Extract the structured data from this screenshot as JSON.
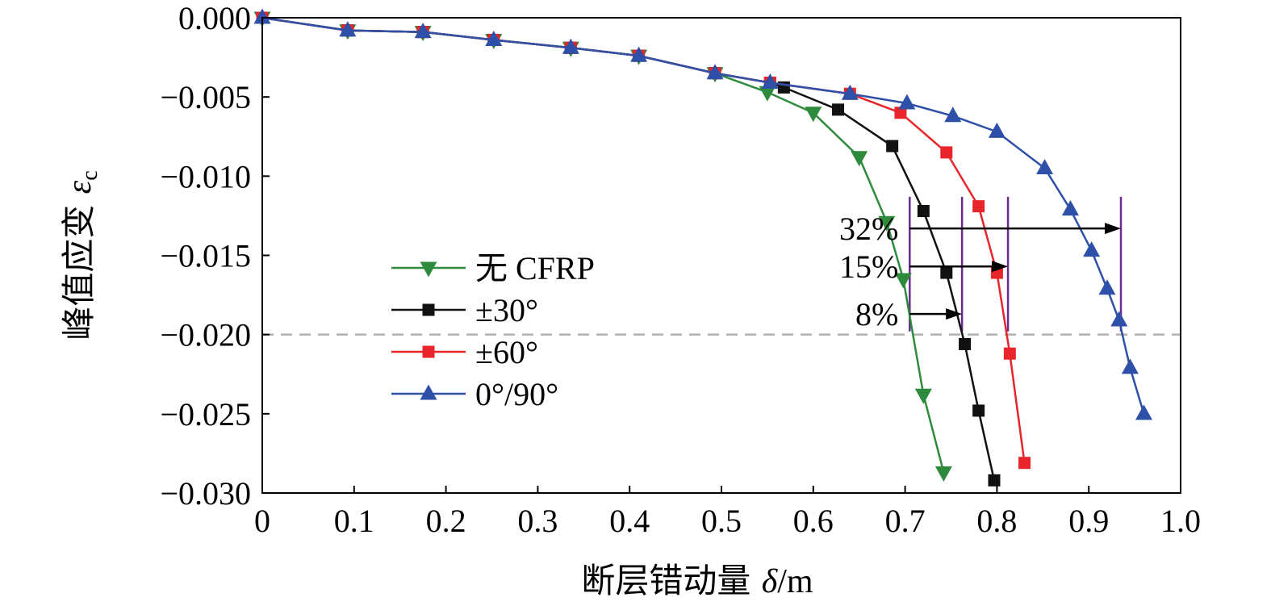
{
  "chart_data": {
    "type": "line",
    "title": "",
    "xlabel_prefix": "断层错动量 ",
    "xlabel_symbol": "δ",
    "xlabel_suffix": "/m",
    "ylabel_prefix": "峰值应变 ",
    "ylabel_symbol": "ε",
    "ylabel_subscript": "c",
    "xlim": [
      0,
      1.0
    ],
    "ylim": [
      -0.03,
      0.0
    ],
    "xticks": [
      "0",
      "0.1",
      "0.2",
      "0.3",
      "0.4",
      "0.5",
      "0.6",
      "0.7",
      "0.8",
      "0.9",
      "1.0"
    ],
    "yticks": [
      "0.000",
      "−0.005",
      "−0.010",
      "−0.015",
      "−0.020",
      "−0.025",
      "−0.030"
    ],
    "reference_line": {
      "y": -0.02,
      "style": "dashed",
      "color": "#b0b0b0"
    },
    "legend_position": "center-left",
    "series": [
      {
        "name": "无 CFRP",
        "marker": "triangle-down",
        "color": "#2e8b3e",
        "x": [
          0,
          0.093,
          0.175,
          0.252,
          0.336,
          0.41,
          0.493,
          0.55,
          0.6,
          0.65,
          0.68,
          0.698,
          0.72,
          0.742
        ],
        "y": [
          0,
          -0.0008,
          -0.0009,
          -0.0014,
          -0.0019,
          -0.0024,
          -0.0035,
          -0.0047,
          -0.006,
          -0.0088,
          -0.0129,
          -0.0165,
          -0.0238,
          -0.0287
        ]
      },
      {
        "name": "±30°",
        "marker": "square",
        "color": "#111111",
        "x": [
          0,
          0.093,
          0.175,
          0.252,
          0.336,
          0.41,
          0.493,
          0.553,
          0.568,
          0.627,
          0.686,
          0.72,
          0.745,
          0.765,
          0.78,
          0.797
        ],
        "y": [
          0,
          -0.0008,
          -0.0009,
          -0.0014,
          -0.0019,
          -0.0024,
          -0.0035,
          -0.0041,
          -0.0044,
          -0.0058,
          -0.0081,
          -0.0122,
          -0.0161,
          -0.0206,
          -0.0248,
          -0.0292
        ]
      },
      {
        "name": "±60°",
        "marker": "square",
        "color": "#e8252b",
        "x": [
          0,
          0.093,
          0.175,
          0.252,
          0.336,
          0.41,
          0.493,
          0.553,
          0.64,
          0.695,
          0.745,
          0.78,
          0.8,
          0.814,
          0.83
        ],
        "y": [
          0,
          -0.0008,
          -0.0009,
          -0.0014,
          -0.0019,
          -0.0024,
          -0.0035,
          -0.0041,
          -0.0048,
          -0.006,
          -0.0085,
          -0.0119,
          -0.0161,
          -0.0212,
          -0.0281
        ]
      },
      {
        "name": "0°/90°",
        "marker": "triangle-up",
        "color": "#2f50a8",
        "x": [
          0,
          0.093,
          0.175,
          0.252,
          0.336,
          0.41,
          0.493,
          0.553,
          0.64,
          0.702,
          0.752,
          0.8,
          0.852,
          0.88,
          0.903,
          0.92,
          0.933,
          0.945,
          0.96
        ],
        "y": [
          0,
          -0.0008,
          -0.0009,
          -0.0014,
          -0.0019,
          -0.0024,
          -0.0035,
          -0.0041,
          -0.0048,
          -0.0054,
          -0.0062,
          -0.0072,
          -0.0095,
          -0.0121,
          -0.0147,
          -0.0171,
          -0.0191,
          -0.0221,
          -0.025
        ]
      }
    ],
    "annotations": [
      {
        "label": "32%",
        "x_from": 0.705,
        "x_to": 0.935,
        "y": -0.0133
      },
      {
        "label": "15%",
        "x_from": 0.705,
        "x_to": 0.812,
        "y": -0.0157
      },
      {
        "label": "8%",
        "x_from": 0.705,
        "x_to": 0.762,
        "y": -0.0187
      }
    ],
    "annotation_vlines": {
      "color": "#6a2c91",
      "x": [
        0.705,
        0.762,
        0.812,
        0.935
      ],
      "y_top": -0.0113,
      "y_bottom": -0.0198
    }
  }
}
